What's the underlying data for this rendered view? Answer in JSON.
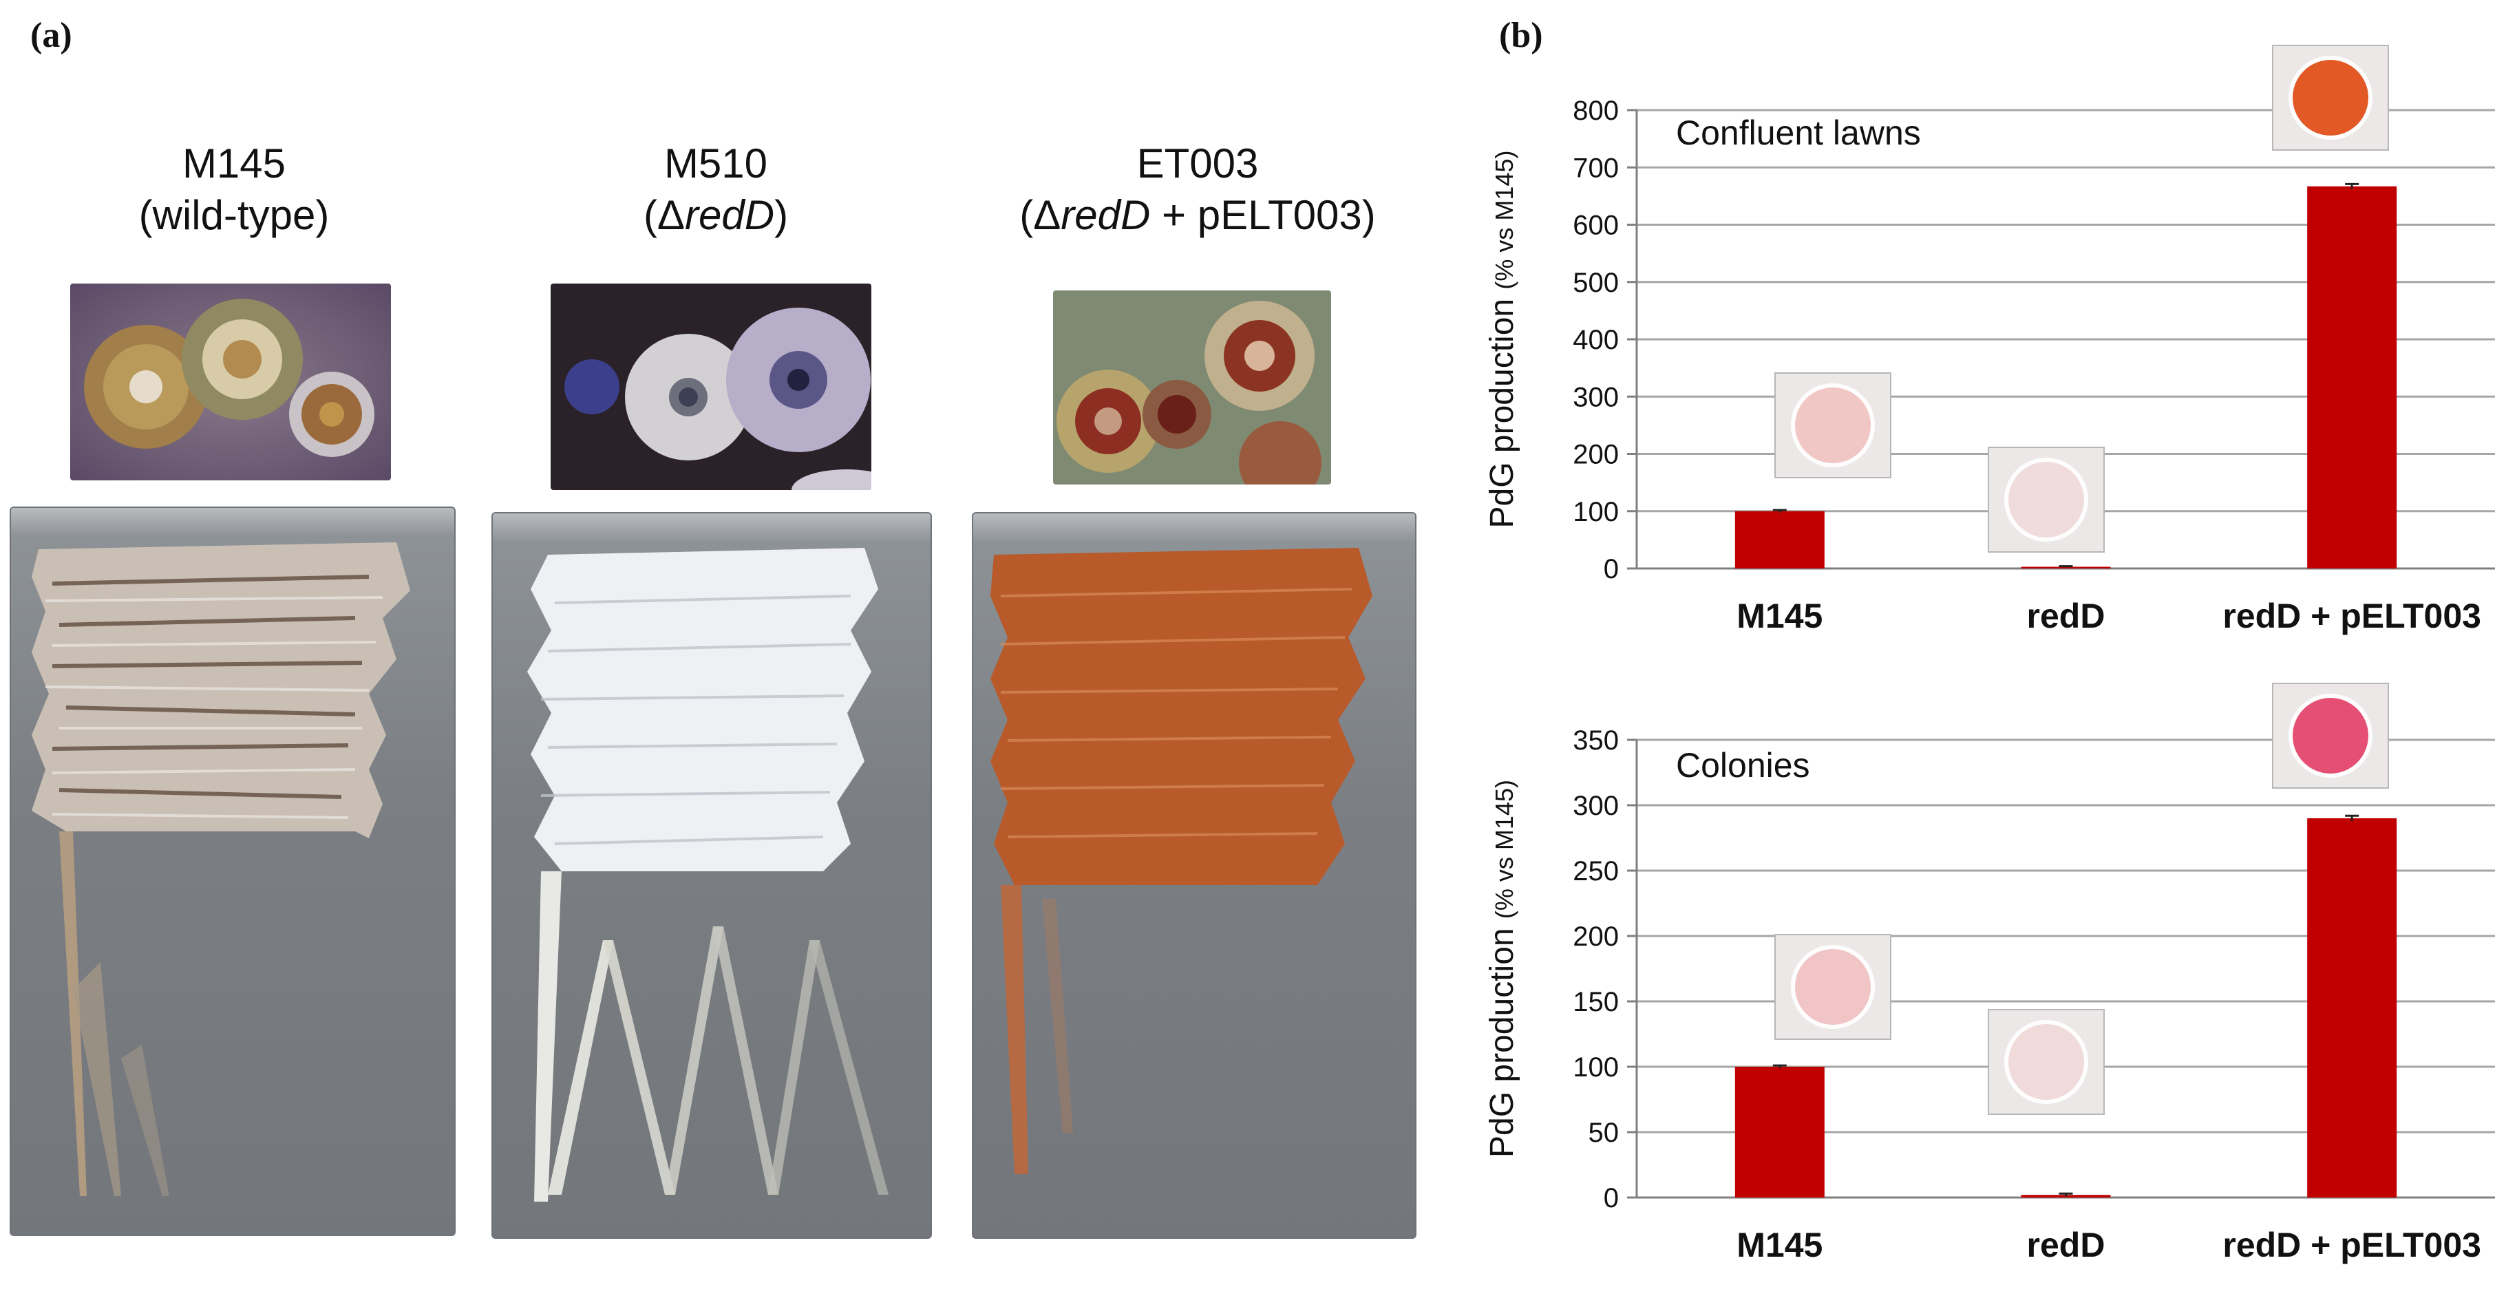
{
  "panels": {
    "a_label": "(a)",
    "b_label": "(b)"
  },
  "strains": [
    {
      "name": "M145",
      "desc": "(wild-type)",
      "desc_pre": "",
      "desc_ital": "",
      "desc_post": ""
    },
    {
      "name": "M510",
      "desc": "",
      "desc_pre": "(Δ",
      "desc_ital": "redD",
      "desc_post": ")"
    },
    {
      "name": "ET003",
      "desc": "",
      "desc_pre": "(Δ",
      "desc_ital": "redD",
      "desc_post": " + pELT003)"
    }
  ],
  "colors": {
    "bar": "#c00000",
    "gridline": "#a6a6a6",
    "plate_bg": "#7b7f83"
  },
  "chart_data": [
    {
      "type": "bar",
      "title": "Confluent lawns",
      "ylabel": "PdG production (% vs M145)",
      "categories": [
        "M145",
        "redD",
        "redD + pELT003"
      ],
      "values": [
        100,
        3,
        667
      ],
      "error": [
        2,
        1,
        4
      ],
      "ylim": [
        0,
        800
      ],
      "yticks": [
        0,
        100,
        200,
        300,
        400,
        500,
        600,
        700,
        800
      ],
      "grid": true
    },
    {
      "type": "bar",
      "title": "Colonies",
      "ylabel": "PdG production (% vs M145)",
      "categories": [
        "M145",
        "redD",
        "redD + pELT003"
      ],
      "values": [
        100,
        2,
        290
      ],
      "error": [
        1,
        1,
        2
      ],
      "ylim": [
        0,
        350
      ],
      "yticks": [
        0,
        50,
        100,
        150,
        200,
        250,
        300,
        350
      ],
      "grid": true
    }
  ]
}
